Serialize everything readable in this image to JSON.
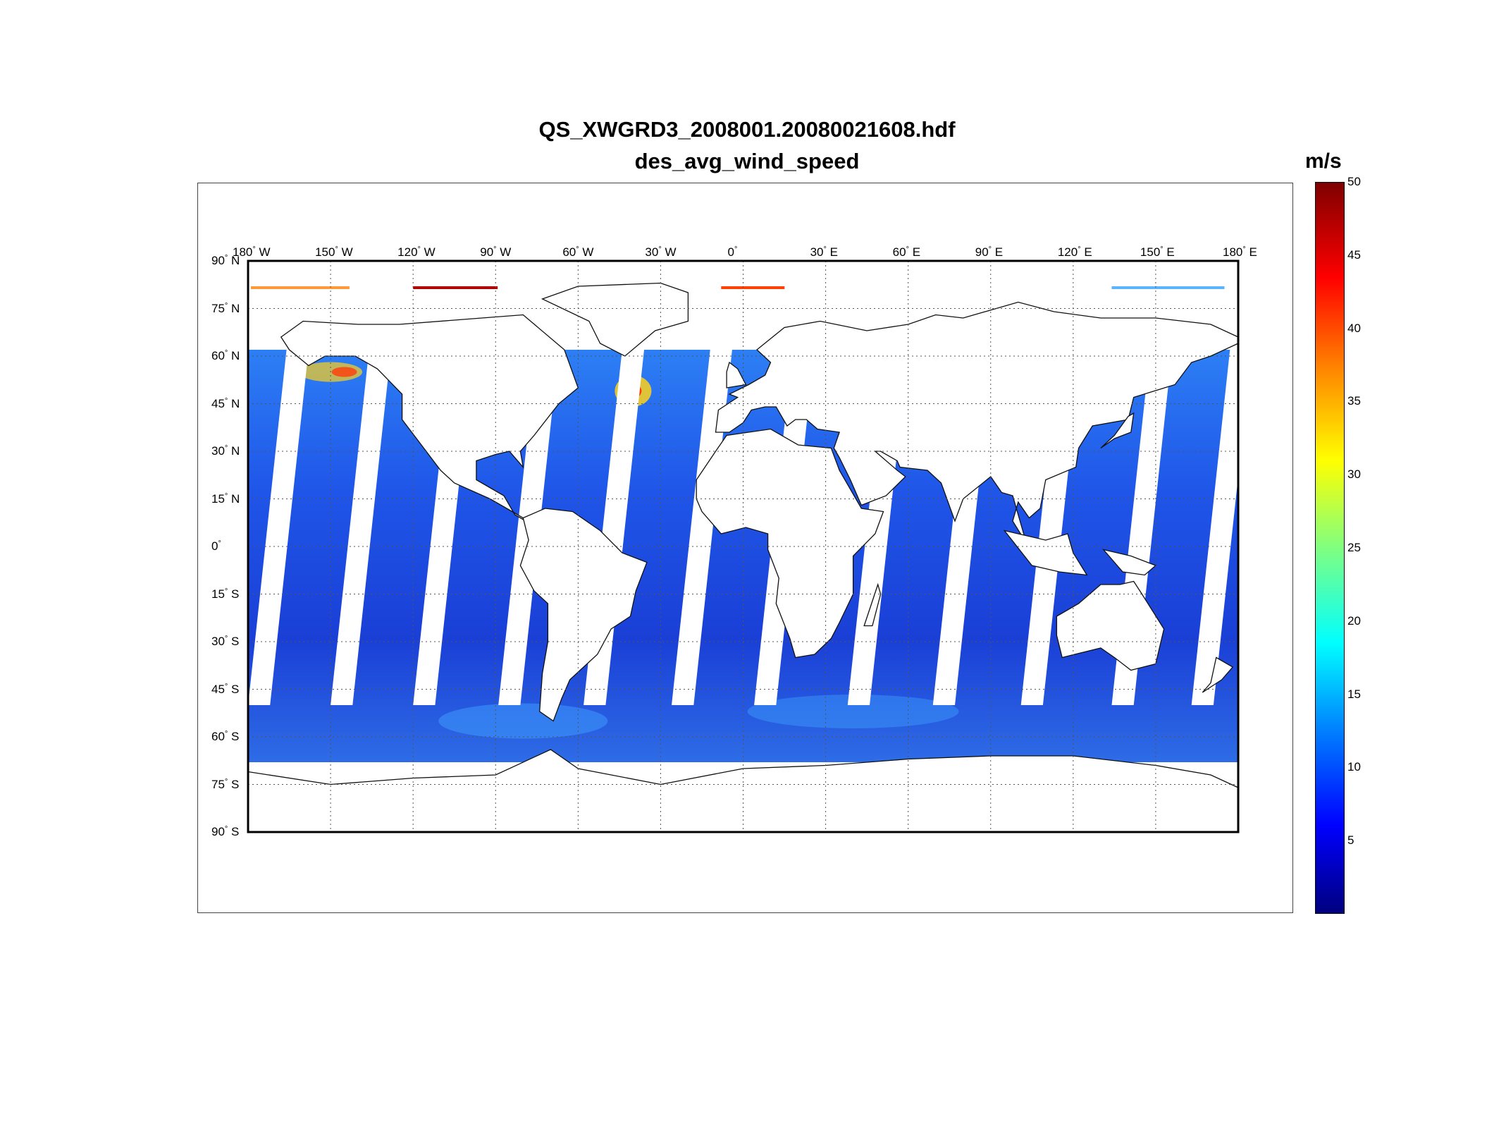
{
  "title": "QS_XWGRD3_2008001.20080021608.hdf",
  "subtitle": "des_avg_wind_speed",
  "colorbar": {
    "unit": "m/s",
    "ticks": [
      "5",
      "10",
      "15",
      "20",
      "25",
      "30",
      "35",
      "40",
      "45",
      "50"
    ],
    "min": 0,
    "max": 50,
    "colormap": "jet"
  },
  "map": {
    "projection": "equirectangular",
    "lon_range": [
      -180,
      180
    ],
    "lat_range": [
      -90,
      90
    ],
    "grid": true,
    "lon_ticks": [
      {
        "num": "180",
        "hemi": "W"
      },
      {
        "num": "150",
        "hemi": "W"
      },
      {
        "num": "120",
        "hemi": "W"
      },
      {
        "num": "90",
        "hemi": "W"
      },
      {
        "num": "60",
        "hemi": "W"
      },
      {
        "num": "30",
        "hemi": "W"
      },
      {
        "num": "0",
        "hemi": ""
      },
      {
        "num": "30",
        "hemi": "E"
      },
      {
        "num": "60",
        "hemi": "E"
      },
      {
        "num": "90",
        "hemi": "E"
      },
      {
        "num": "120",
        "hemi": "E"
      },
      {
        "num": "150",
        "hemi": "E"
      },
      {
        "num": "180",
        "hemi": "E"
      }
    ],
    "lat_ticks": [
      {
        "num": "90",
        "hemi": "N"
      },
      {
        "num": "75",
        "hemi": "N"
      },
      {
        "num": "60",
        "hemi": "N"
      },
      {
        "num": "45",
        "hemi": "N"
      },
      {
        "num": "30",
        "hemi": "N"
      },
      {
        "num": "15",
        "hemi": "N"
      },
      {
        "num": "0",
        "hemi": ""
      },
      {
        "num": "15",
        "hemi": "S"
      },
      {
        "num": "30",
        "hemi": "S"
      },
      {
        "num": "45",
        "hemi": "S"
      },
      {
        "num": "60",
        "hemi": "S"
      },
      {
        "num": "75",
        "hemi": "S"
      },
      {
        "num": "90",
        "hemi": "S"
      }
    ],
    "data_colors": {
      "ocean_base": "#1a3fd6",
      "ocean_mid": "#2b6ef0",
      "high_wind": "#ffd21a",
      "peak_wind": "#ff3b0a",
      "land": "#ffffff",
      "gap": "#ffffff"
    }
  }
}
